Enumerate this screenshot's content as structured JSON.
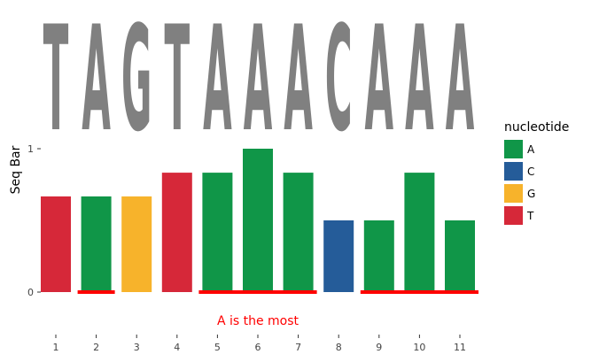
{
  "chart_data": {
    "type": "bar",
    "ylabel": "Seq Bar",
    "xlabel": "",
    "title": "",
    "categories": [
      "1",
      "2",
      "3",
      "4",
      "5",
      "6",
      "7",
      "8",
      "9",
      "10",
      "11"
    ],
    "sequence": [
      "T",
      "A",
      "G",
      "T",
      "A",
      "A",
      "A",
      "C",
      "A",
      "A",
      "A"
    ],
    "values": [
      0.667,
      0.667,
      0.667,
      0.833,
      0.833,
      1.0,
      0.833,
      0.5,
      0.5,
      0.833,
      0.5
    ],
    "ylim": [
      0,
      1
    ],
    "yticks": [
      "0",
      "1"
    ],
    "legend": {
      "title": "nucleotide",
      "placement": "right",
      "items": [
        {
          "label": "A",
          "color": "#109648"
        },
        {
          "label": "C",
          "color": "#255C99"
        },
        {
          "label": "G",
          "color": "#F7B32B"
        },
        {
          "label": "T",
          "color": "#D62839"
        }
      ]
    },
    "highlight": {
      "color": "#FF0000",
      "ranges": [
        [
          2,
          2
        ],
        [
          5,
          7
        ],
        [
          9,
          11
        ]
      ],
      "annotation": "A is the most",
      "annotation_x": 6
    },
    "logo_color": "#808080",
    "grid": false
  }
}
